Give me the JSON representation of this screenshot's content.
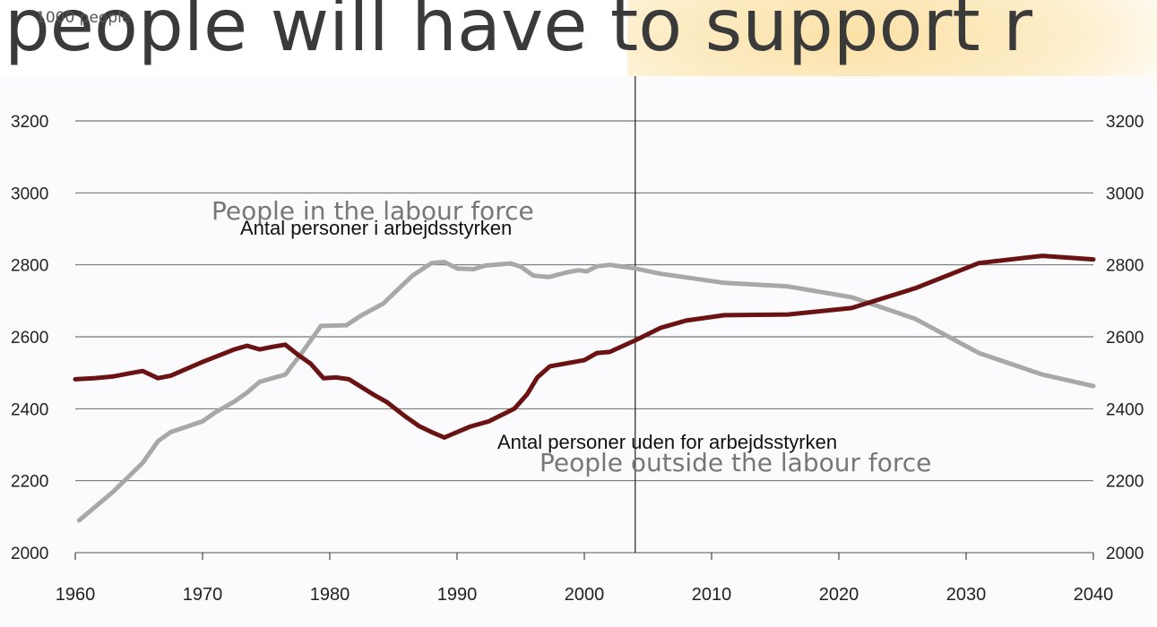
{
  "headline": "people will have to support r",
  "chart_data": {
    "type": "line",
    "unit_label": "1000 people",
    "x_ticks": [
      1960,
      1970,
      1980,
      1990,
      2000,
      2010,
      2020,
      2030,
      2040
    ],
    "y_ticks": [
      2000,
      2200,
      2400,
      2600,
      2800,
      3000,
      3200
    ],
    "xlim": [
      1960,
      2040
    ],
    "ylim": [
      2000,
      3200
    ],
    "grid": true,
    "divider_year": 2004,
    "series": [
      {
        "name": "People in the labour force",
        "name_da": "Antal personer i arbejdsstyrken",
        "color": "#a8a8a8",
        "points": [
          [
            1960.3,
            2090
          ],
          [
            1963,
            2170
          ],
          [
            1965.3,
            2250
          ],
          [
            1966.5,
            2310
          ],
          [
            1967.5,
            2335
          ],
          [
            1970,
            2365
          ],
          [
            1971,
            2390
          ],
          [
            1972.5,
            2420
          ],
          [
            1973.5,
            2445
          ],
          [
            1974.5,
            2475
          ],
          [
            1975.5,
            2485
          ],
          [
            1976.5,
            2495
          ],
          [
            1978,
            2565
          ],
          [
            1979.3,
            2630
          ],
          [
            1981.3,
            2632
          ],
          [
            1982.5,
            2660
          ],
          [
            1984.2,
            2692
          ],
          [
            1985.3,
            2730
          ],
          [
            1986.5,
            2770
          ],
          [
            1988,
            2805
          ],
          [
            1989,
            2808
          ],
          [
            1990,
            2790
          ],
          [
            1991.3,
            2788
          ],
          [
            1992.2,
            2798
          ],
          [
            1994.2,
            2804
          ],
          [
            1995,
            2795
          ],
          [
            1996,
            2770
          ],
          [
            1997.2,
            2766
          ],
          [
            1998.5,
            2778
          ],
          [
            1999.5,
            2785
          ],
          [
            2000.2,
            2782
          ],
          [
            2001,
            2796
          ],
          [
            2002,
            2800
          ],
          [
            2004,
            2790
          ],
          [
            2006,
            2775
          ],
          [
            2008,
            2765
          ],
          [
            2011,
            2750
          ],
          [
            2016,
            2740
          ],
          [
            2021,
            2710
          ],
          [
            2026,
            2650
          ],
          [
            2031,
            2555
          ],
          [
            2036,
            2495
          ],
          [
            2040,
            2463
          ]
        ]
      },
      {
        "name": "People outside the labour force",
        "name_da": "Antal personer uden for arbejdsstyrken",
        "color": "#6b1212",
        "points": [
          [
            1960,
            2482
          ],
          [
            1961.5,
            2485
          ],
          [
            1963,
            2490
          ],
          [
            1964.5,
            2500
          ],
          [
            1965.3,
            2505
          ],
          [
            1966.5,
            2485
          ],
          [
            1967.5,
            2492
          ],
          [
            1970,
            2530
          ],
          [
            1972.5,
            2565
          ],
          [
            1973.5,
            2575
          ],
          [
            1974.5,
            2565
          ],
          [
            1975.5,
            2572
          ],
          [
            1976.5,
            2578
          ],
          [
            1977.5,
            2550
          ],
          [
            1978.5,
            2525
          ],
          [
            1979.5,
            2485
          ],
          [
            1980.5,
            2487
          ],
          [
            1981.5,
            2482
          ],
          [
            1983.5,
            2438
          ],
          [
            1984.5,
            2418
          ],
          [
            1986,
            2377
          ],
          [
            1987,
            2352
          ],
          [
            1988,
            2335
          ],
          [
            1989,
            2320
          ],
          [
            1990,
            2335
          ],
          [
            1991,
            2350
          ],
          [
            1992.5,
            2365
          ],
          [
            1994.5,
            2400
          ],
          [
            1995.5,
            2440
          ],
          [
            1996.3,
            2487
          ],
          [
            1997.3,
            2518
          ],
          [
            2000,
            2535
          ],
          [
            2001,
            2555
          ],
          [
            2002,
            2558
          ],
          [
            2004,
            2590
          ],
          [
            2006,
            2625
          ],
          [
            2008,
            2645
          ],
          [
            2011,
            2660
          ],
          [
            2016,
            2662
          ],
          [
            2021,
            2680
          ],
          [
            2026,
            2735
          ],
          [
            2031,
            2805
          ],
          [
            2036,
            2825
          ],
          [
            2040,
            2815
          ]
        ]
      }
    ]
  }
}
